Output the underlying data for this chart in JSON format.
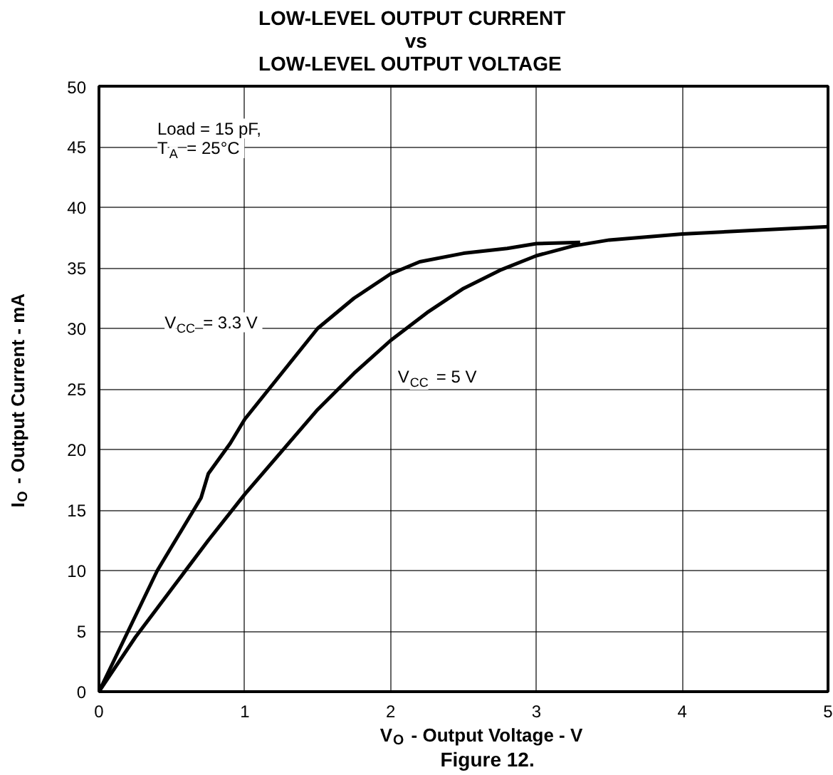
{
  "chart_data": {
    "type": "line",
    "title": "LOW-LEVEL OUTPUT CURRENT\nvs\nLOW-LEVEL OUTPUT VOLTAGE",
    "xlabel": "V$_{O}$ - Output Voltage - V",
    "ylabel": "I$_{O}$ - Output Current - mA",
    "annotations": [
      "Load = 15 pF,\nT$_{A}$ = 25°C",
      "Figure 12."
    ],
    "xlim": [
      0,
      5
    ],
    "ylim": [
      0,
      50
    ],
    "xticks": [
      0,
      1,
      2,
      3,
      4,
      5
    ],
    "yticks": [
      0,
      5,
      10,
      15,
      20,
      25,
      30,
      35,
      40,
      45,
      50
    ],
    "grid": true,
    "line_style": "solid",
    "series": [
      {
        "name": "V$_{CC}$ = 3.3 V",
        "color": "#000000",
        "x": [
          0,
          0.2,
          0.4,
          0.5,
          0.6,
          0.7,
          0.75,
          0.9,
          1,
          1.2,
          1.3,
          1.5,
          1.75,
          2,
          2.2,
          2.5,
          2.8,
          3,
          3.3
        ],
        "values": [
          0,
          5,
          10,
          12,
          14,
          16,
          18,
          20.5,
          22.5,
          25.5,
          27,
          30,
          32.5,
          34.5,
          35.5,
          36.2,
          36.6,
          37,
          37.1
        ]
      },
      {
        "name": "V$_{CC}$ = 5 V",
        "color": "#000000",
        "x": [
          0,
          0.25,
          0.5,
          0.75,
          1,
          1.25,
          1.5,
          1.75,
          2,
          2.25,
          2.5,
          2.75,
          3,
          3.25,
          3.5,
          4,
          4.5,
          5
        ],
        "values": [
          0,
          4.5,
          8.5,
          12.5,
          16.3,
          19.8,
          23.3,
          26.3,
          29,
          31.3,
          33.3,
          34.8,
          36,
          36.8,
          37.3,
          37.8,
          38.1,
          38.4
        ]
      }
    ]
  }
}
